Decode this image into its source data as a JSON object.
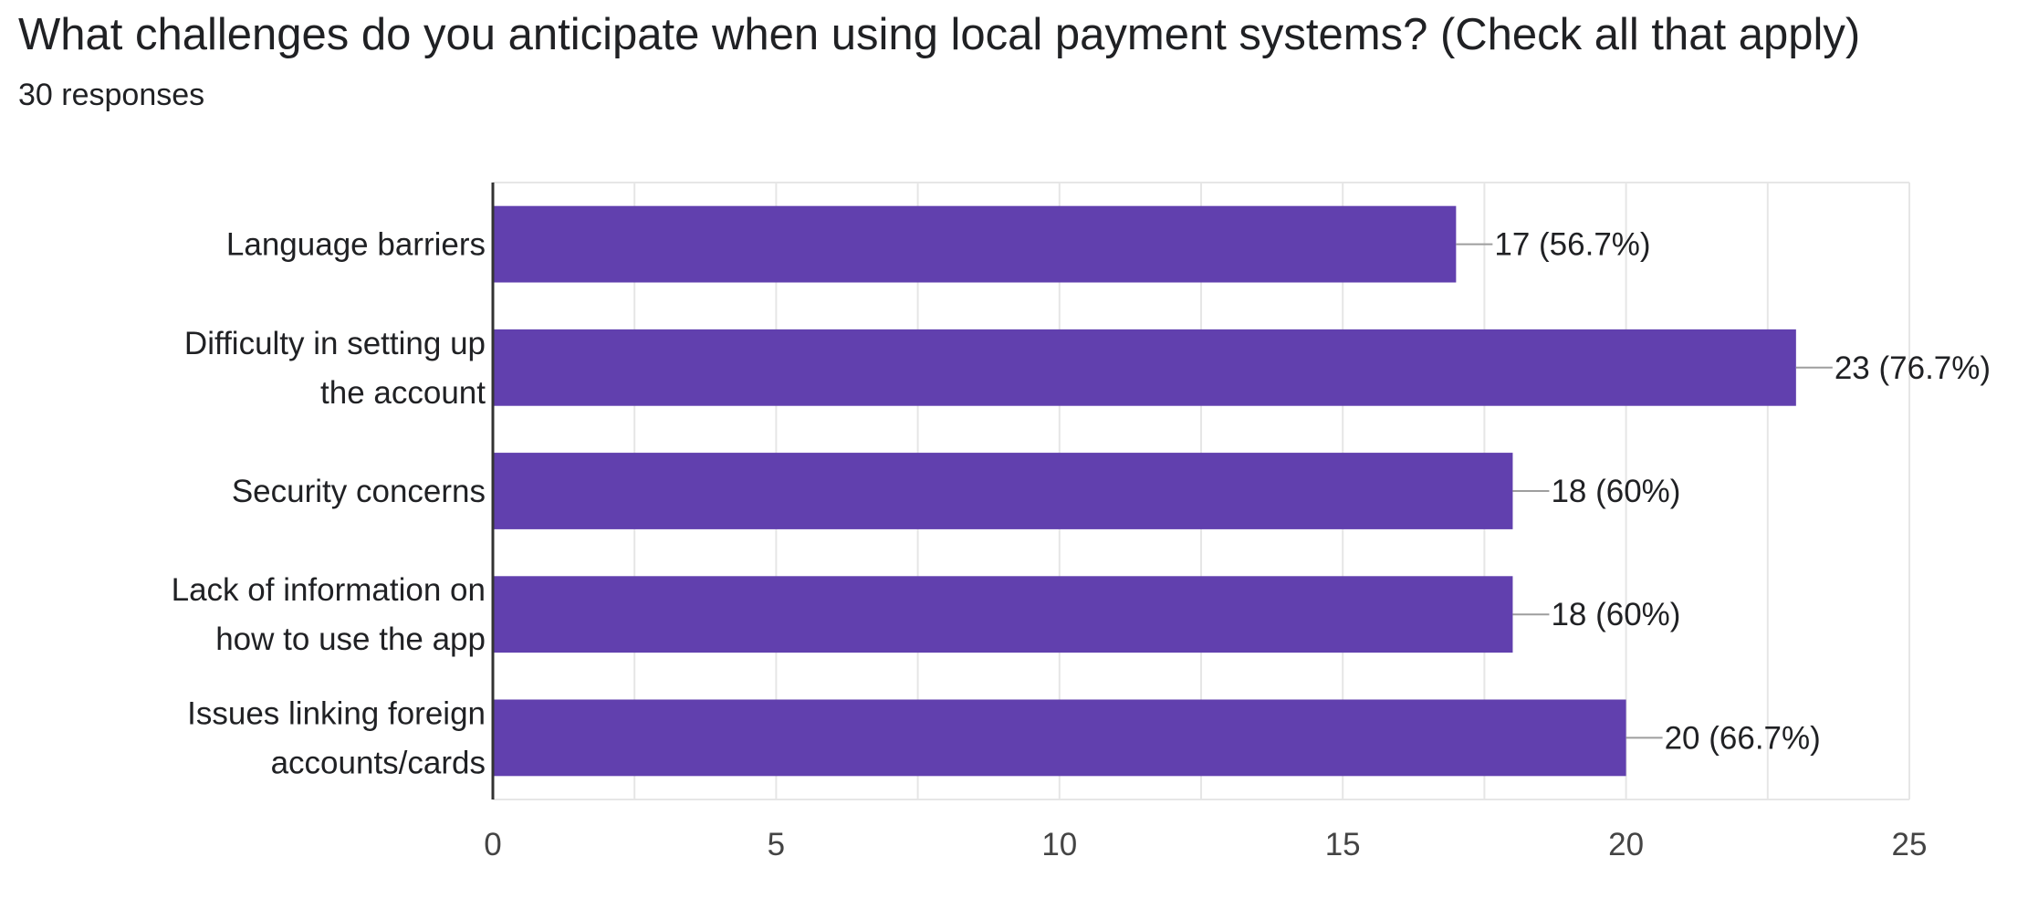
{
  "question": {
    "title": "What challenges do you anticipate when using local payment systems? (Check all that apply)",
    "responses": "30 responses"
  },
  "colors": {
    "bar": "#6140AE",
    "grid": "#E6E6E6",
    "axis": "#333333",
    "leader": "#9E9E9E"
  },
  "chart_data": {
    "type": "bar",
    "orientation": "horizontal",
    "categories": [
      [
        "Language barriers"
      ],
      [
        "Difficulty in setting up",
        "the account"
      ],
      [
        "Security concerns"
      ],
      [
        "Lack of information on",
        "how to use the app"
      ],
      [
        "Issues linking foreign",
        "accounts/cards"
      ]
    ],
    "values": [
      17,
      23,
      18,
      18,
      20
    ],
    "data_labels": [
      "17 (56.7%)",
      "23 (76.7%)",
      "18 (60%)",
      "18 (60%)",
      "20 (66.7%)"
    ],
    "xlim": [
      0,
      25
    ],
    "xticks": [
      0,
      5,
      10,
      15,
      20,
      25
    ],
    "grid": true,
    "legend": "none"
  }
}
